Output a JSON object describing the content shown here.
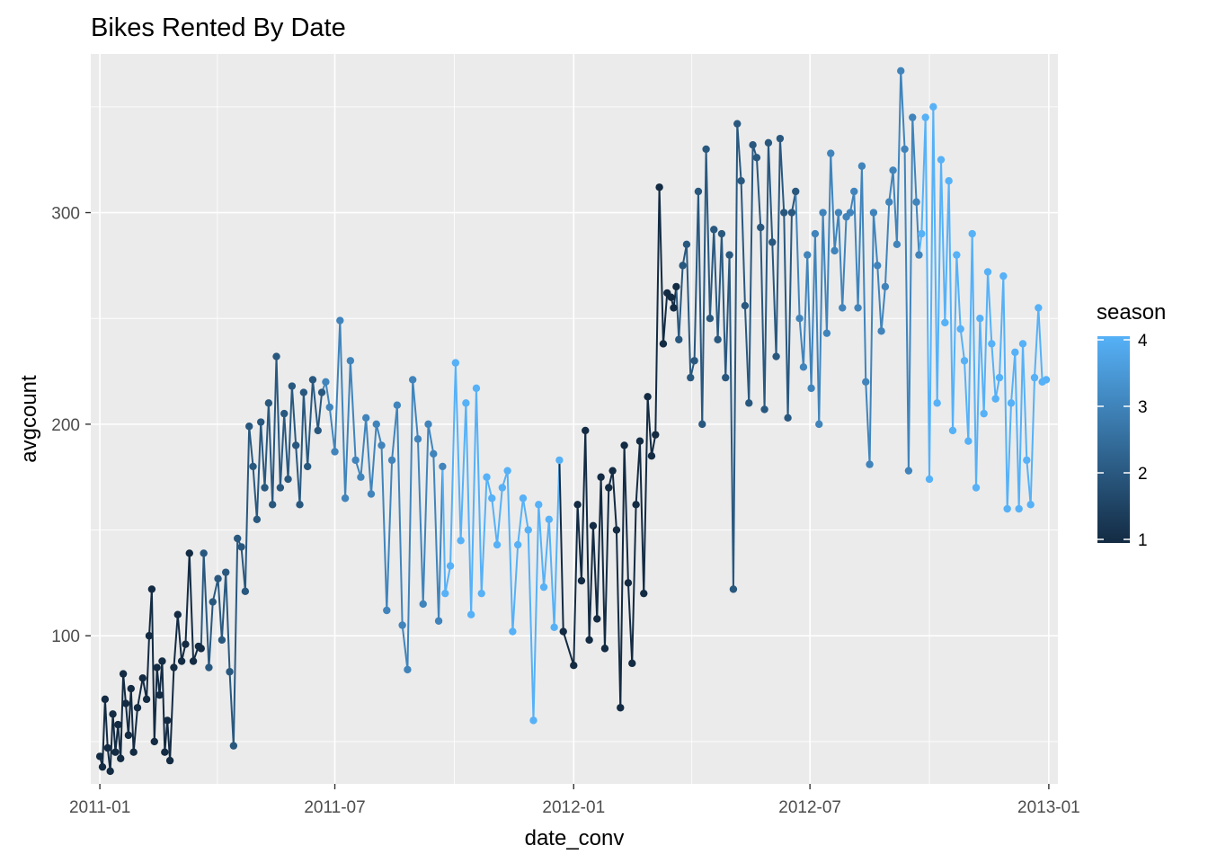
{
  "chart_data": {
    "type": "line",
    "title": "Bikes Rented By Date",
    "xlabel": "date_conv",
    "ylabel": "avgcount",
    "x_ticks": [
      "2011-01",
      "2011-07",
      "2012-01",
      "2012-07",
      "2013-01"
    ],
    "y_ticks": [
      100,
      200,
      300
    ],
    "ylim": [
      30,
      375
    ],
    "xlim": [
      "2010-12-25",
      "2013-01-08"
    ],
    "grid": true,
    "markers": "points",
    "color_by": "season",
    "legend": {
      "title": "season",
      "type": "continuous-gradient",
      "labels": [
        1,
        2,
        3,
        4
      ],
      "low_color": "#132b43",
      "high_color": "#56b1f7",
      "position": "right"
    },
    "series": [
      {
        "season": 1,
        "x": [
          "2011-01-01",
          "2011-01-03",
          "2011-01-05",
          "2011-01-07",
          "2011-01-09",
          "2011-01-11",
          "2011-01-13",
          "2011-01-15",
          "2011-01-17",
          "2011-01-19",
          "2011-01-21",
          "2011-01-23",
          "2011-01-25",
          "2011-01-27",
          "2011-01-30",
          "2011-02-03",
          "2011-02-06",
          "2011-02-08",
          "2011-02-10",
          "2011-02-12",
          "2011-02-14",
          "2011-02-16",
          "2011-02-18",
          "2011-02-20",
          "2011-02-22",
          "2011-02-24",
          "2011-02-27",
          "2011-03-02",
          "2011-03-05",
          "2011-03-08",
          "2011-03-11",
          "2011-03-14",
          "2011-03-18",
          "2011-03-20"
        ],
        "y": [
          43,
          38,
          70,
          47,
          36,
          63,
          45,
          58,
          42,
          82,
          68,
          53,
          75,
          45,
          66,
          80,
          70,
          100,
          122,
          50,
          85,
          72,
          88,
          45,
          60,
          41,
          85,
          110,
          88,
          96,
          139,
          88,
          95,
          94
        ]
      },
      {
        "season": 2,
        "x": [
          "2011-03-22",
          "2011-03-26",
          "2011-03-29",
          "2011-04-02",
          "2011-04-05",
          "2011-04-08",
          "2011-04-11",
          "2011-04-14",
          "2011-04-17",
          "2011-04-20",
          "2011-04-23",
          "2011-04-26",
          "2011-04-29",
          "2011-05-02",
          "2011-05-05",
          "2011-05-08",
          "2011-05-11",
          "2011-05-14",
          "2011-05-17",
          "2011-05-20",
          "2011-05-23",
          "2011-05-26",
          "2011-05-29",
          "2011-06-01",
          "2011-06-04",
          "2011-06-07",
          "2011-06-10",
          "2011-06-14",
          "2011-06-18",
          "2011-06-21"
        ],
        "y": [
          139,
          85,
          116,
          127,
          98,
          130,
          83,
          48,
          146,
          142,
          121,
          199,
          180,
          155,
          201,
          170,
          210,
          162,
          232,
          170,
          205,
          174,
          218,
          190,
          162,
          215,
          180,
          221,
          197,
          215
        ]
      },
      {
        "season": 3,
        "x": [
          "2011-06-24",
          "2011-06-27",
          "2011-07-01",
          "2011-07-05",
          "2011-07-09",
          "2011-07-13",
          "2011-07-17",
          "2011-07-21",
          "2011-07-25",
          "2011-07-29",
          "2011-08-02",
          "2011-08-06",
          "2011-08-10",
          "2011-08-14",
          "2011-08-18",
          "2011-08-22",
          "2011-08-26",
          "2011-08-30",
          "2011-09-03",
          "2011-09-07",
          "2011-09-11",
          "2011-09-15",
          "2011-09-19",
          "2011-09-22"
        ],
        "y": [
          220,
          208,
          187,
          249,
          165,
          230,
          183,
          175,
          203,
          167,
          200,
          190,
          112,
          183,
          209,
          105,
          84,
          221,
          193,
          115,
          200,
          186,
          107,
          180
        ]
      },
      {
        "season": 4,
        "x": [
          "2011-09-24",
          "2011-09-28",
          "2011-10-02",
          "2011-10-06",
          "2011-10-10",
          "2011-10-14",
          "2011-10-18",
          "2011-10-22",
          "2011-10-26",
          "2011-10-30",
          "2011-11-03",
          "2011-11-07",
          "2011-11-11",
          "2011-11-15",
          "2011-11-19",
          "2011-11-23",
          "2011-11-27",
          "2011-12-01",
          "2011-12-05",
          "2011-12-09",
          "2011-12-13",
          "2011-12-17",
          "2011-12-21"
        ],
        "y": [
          120,
          133,
          229,
          145,
          210,
          110,
          217,
          120,
          175,
          165,
          143,
          170,
          178,
          102,
          143,
          165,
          150,
          60,
          162,
          123,
          155,
          104,
          183
        ]
      },
      {
        "season": 1,
        "x": [
          "2011-12-24",
          "2012-01-01",
          "2012-01-04",
          "2012-01-07",
          "2012-01-10",
          "2012-01-13",
          "2012-01-16",
          "2012-01-19",
          "2012-01-22",
          "2012-01-25",
          "2012-01-28",
          "2012-01-31",
          "2012-02-03",
          "2012-02-06",
          "2012-02-09",
          "2012-02-12",
          "2012-02-15",
          "2012-02-18",
          "2012-02-21",
          "2012-02-24",
          "2012-02-27",
          "2012-03-01",
          "2012-03-04",
          "2012-03-07",
          "2012-03-10",
          "2012-03-13",
          "2012-03-16",
          "2012-03-18",
          "2012-03-20"
        ],
        "y": [
          102,
          86,
          162,
          126,
          197,
          98,
          152,
          108,
          175,
          94,
          170,
          178,
          150,
          66,
          190,
          125,
          87,
          162,
          192,
          120,
          213,
          185,
          195,
          312,
          238,
          262,
          260,
          255,
          265
        ]
      },
      {
        "season": 2,
        "x": [
          "2012-03-22",
          "2012-03-25",
          "2012-03-28",
          "2012-03-31",
          "2012-04-03",
          "2012-04-06",
          "2012-04-09",
          "2012-04-12",
          "2012-04-15",
          "2012-04-18",
          "2012-04-21",
          "2012-04-24",
          "2012-04-27",
          "2012-04-30",
          "2012-05-03",
          "2012-05-06",
          "2012-05-09",
          "2012-05-12",
          "2012-05-15",
          "2012-05-18",
          "2012-05-21",
          "2012-05-24",
          "2012-05-27",
          "2012-05-30",
          "2012-06-02",
          "2012-06-05",
          "2012-06-08",
          "2012-06-11",
          "2012-06-14",
          "2012-06-17",
          "2012-06-20"
        ],
        "y": [
          240,
          275,
          285,
          222,
          230,
          310,
          200,
          330,
          250,
          292,
          240,
          290,
          222,
          280,
          122,
          342,
          315,
          256,
          210,
          332,
          326,
          293,
          207,
          333,
          286,
          232,
          335,
          300,
          203,
          300,
          310
        ]
      },
      {
        "season": 3,
        "x": [
          "2012-06-23",
          "2012-06-26",
          "2012-06-29",
          "2012-07-02",
          "2012-07-05",
          "2012-07-08",
          "2012-07-11",
          "2012-07-14",
          "2012-07-17",
          "2012-07-20",
          "2012-07-23",
          "2012-07-26",
          "2012-07-29",
          "2012-08-01",
          "2012-08-04",
          "2012-08-07",
          "2012-08-10",
          "2012-08-13",
          "2012-08-16",
          "2012-08-19",
          "2012-08-22",
          "2012-08-25",
          "2012-08-28",
          "2012-08-31",
          "2012-09-03",
          "2012-09-06",
          "2012-09-09",
          "2012-09-12",
          "2012-09-15",
          "2012-09-18",
          "2012-09-21",
          "2012-09-23"
        ],
        "y": [
          250,
          227,
          280,
          217,
          290,
          200,
          300,
          243,
          328,
          282,
          300,
          255,
          298,
          300,
          310,
          255,
          322,
          220,
          181,
          300,
          275,
          244,
          265,
          305,
          320,
          285,
          367,
          330,
          178,
          345,
          305,
          280
        ]
      },
      {
        "season": 4,
        "x": [
          "2012-09-25",
          "2012-09-28",
          "2012-10-01",
          "2012-10-04",
          "2012-10-07",
          "2012-10-10",
          "2012-10-13",
          "2012-10-16",
          "2012-10-19",
          "2012-10-22",
          "2012-10-25",
          "2012-10-28",
          "2012-10-31",
          "2012-11-03",
          "2012-11-06",
          "2012-11-09",
          "2012-11-12",
          "2012-11-15",
          "2012-11-18",
          "2012-11-21",
          "2012-11-24",
          "2012-11-27",
          "2012-11-30",
          "2012-12-03",
          "2012-12-06",
          "2012-12-09",
          "2012-12-12",
          "2012-12-15",
          "2012-12-18",
          "2012-12-21",
          "2012-12-24",
          "2012-12-27",
          "2012-12-30"
        ],
        "y": [
          290,
          345,
          174,
          350,
          210,
          325,
          248,
          315,
          197,
          280,
          245,
          230,
          192,
          290,
          170,
          250,
          205,
          272,
          238,
          212,
          222,
          270,
          160,
          210,
          234,
          160,
          238,
          183,
          162,
          222,
          255,
          220,
          221
        ]
      }
    ]
  }
}
